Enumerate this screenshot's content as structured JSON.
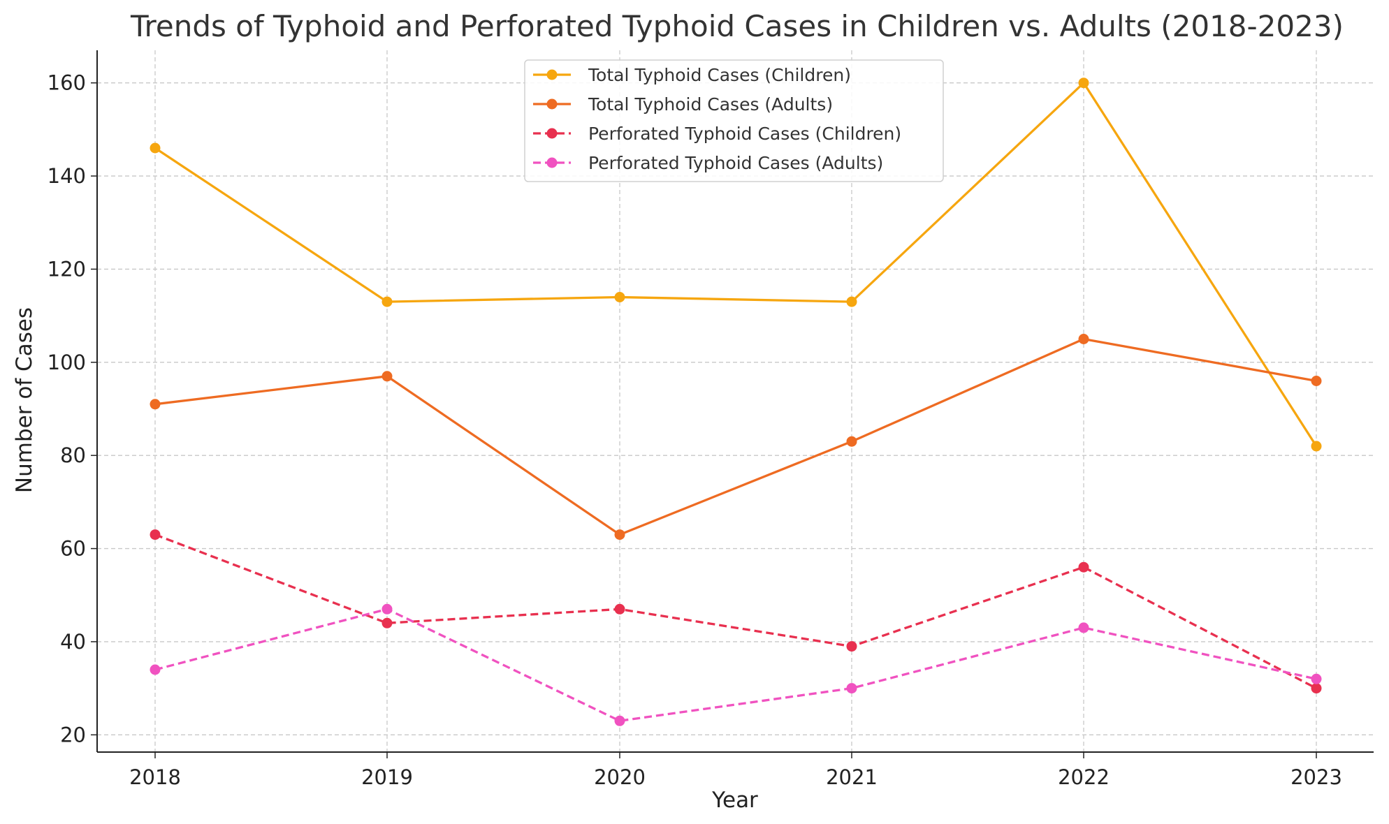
{
  "chart_data": {
    "type": "line",
    "title": "Trends of Typhoid and Perforated Typhoid Cases in Children vs. Adults (2018-2023)",
    "xlabel": "Year",
    "ylabel": "Number of Cases",
    "categories": [
      "2018",
      "2019",
      "2020",
      "2021",
      "2022",
      "2023"
    ],
    "x_ticks": [
      "2018",
      "2019",
      "2020",
      "2021",
      "2022",
      "2023"
    ],
    "y_ticks": [
      "20",
      "40",
      "60",
      "80",
      "100",
      "120",
      "140",
      "160"
    ],
    "ylim": [
      16.3,
      167
    ],
    "grid": true,
    "legend_position": "top-center",
    "series": [
      {
        "name": "Total Typhoid Cases (Children)",
        "values": [
          146,
          113,
          114,
          113,
          160,
          82
        ],
        "color": "#F6A60F",
        "line_style": "solid"
      },
      {
        "name": "Total Typhoid Cases (Adults)",
        "values": [
          91,
          97,
          63,
          83,
          105,
          96
        ],
        "color": "#EE6B22",
        "line_style": "solid"
      },
      {
        "name": "Perforated Typhoid Cases (Children)",
        "values": [
          63,
          44,
          47,
          39,
          56,
          30
        ],
        "color": "#E8304F",
        "line_style": "dashed"
      },
      {
        "name": "Perforated Typhoid Cases (Adults)",
        "values": [
          34,
          47,
          23,
          30,
          43,
          32
        ],
        "color": "#F052C0",
        "line_style": "dashed"
      }
    ]
  }
}
